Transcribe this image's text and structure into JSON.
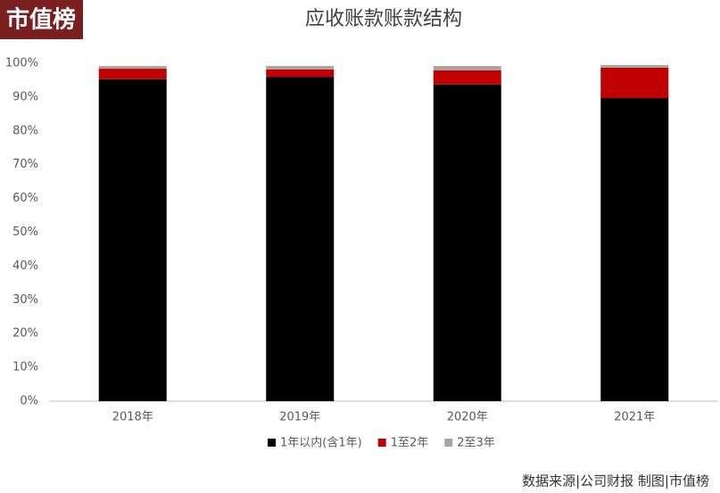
{
  "chart_data": {
    "type": "stacked_bar",
    "title": "应收账款账款结构",
    "logo": "市值榜",
    "source": "数据来源|公司财报  制图|市值榜",
    "categories": [
      "2018年",
      "2019年",
      "2020年",
      "2021年"
    ],
    "series": [
      {
        "name": "1年以内(含1年)",
        "color": "#000000",
        "values": [
          95.3,
          96.0,
          93.7,
          89.7
        ]
      },
      {
        "name": "1至2年",
        "color": "#c00000",
        "values": [
          3.1,
          2.2,
          4.2,
          9.0
        ]
      },
      {
        "name": "2至3年",
        "color": "#a5a5a5",
        "values": [
          0.8,
          1.0,
          1.3,
          0.8
        ]
      }
    ],
    "ylim": [
      0,
      100
    ],
    "yticks": [
      {
        "value": 0,
        "label": "0%"
      },
      {
        "value": 10,
        "label": "10%"
      },
      {
        "value": 20,
        "label": "20%"
      },
      {
        "value": 30,
        "label": "30%"
      },
      {
        "value": 40,
        "label": "40%"
      },
      {
        "value": 50,
        "label": "50%"
      },
      {
        "value": 60,
        "label": "60%"
      },
      {
        "value": 70,
        "label": "70%"
      },
      {
        "value": 80,
        "label": "80%"
      },
      {
        "value": 90,
        "label": "90%"
      },
      {
        "value": 100,
        "label": "100%"
      }
    ],
    "grid": false,
    "legend": "bottom"
  }
}
